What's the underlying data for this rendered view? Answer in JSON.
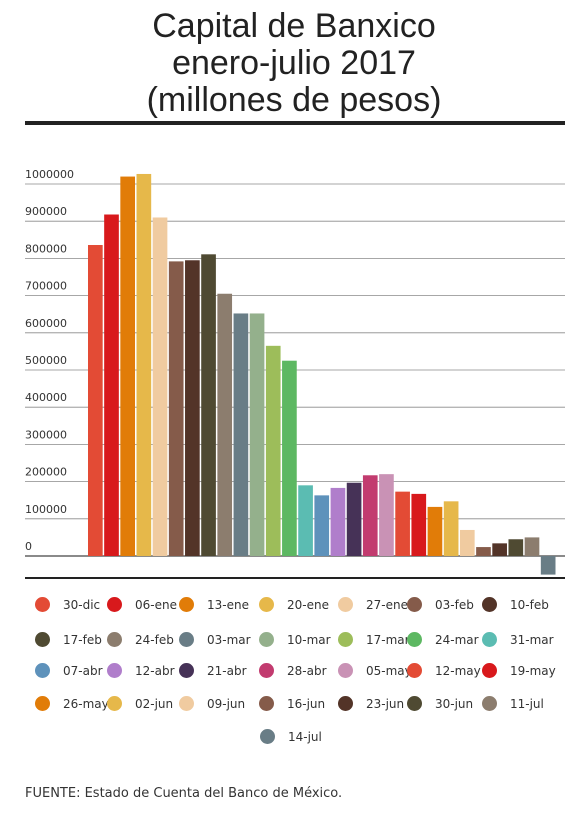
{
  "title_lines": [
    "Capital de Banxico",
    "enero-julio 2017",
    "(millones de pesos)"
  ],
  "source": "FUENTE: Estado de Cuenta del Banco de México.",
  "chart_data": {
    "type": "bar",
    "title": "Capital de Banxico enero-julio 2017 (millones de pesos)",
    "xlabel": "",
    "ylabel": "",
    "ylim": [
      -50000,
      1000000
    ],
    "yticks": [
      0,
      100000,
      200000,
      300000,
      400000,
      500000,
      600000,
      700000,
      800000,
      900000,
      1000000
    ],
    "grid": true,
    "legend_position": "bottom",
    "categories": [
      "30-dic",
      "06-ene",
      "13-ene",
      "20-ene",
      "27-ene",
      "03-feb",
      "10-feb",
      "17-feb",
      "24-feb",
      "03-mar",
      "10-mar",
      "17-mar",
      "24-mar",
      "31-mar",
      "07-abr",
      "12-abr",
      "21-abr",
      "28-abr",
      "05-may",
      "12-may",
      "19-may",
      "26-may",
      "02-jun",
      "09-jun",
      "16-jun",
      "23-jun",
      "30-jun",
      "11-jul",
      "14-jul"
    ],
    "values": [
      836000,
      918000,
      1020000,
      1027000,
      910000,
      792000,
      795000,
      811000,
      705000,
      652000,
      652000,
      565000,
      525000,
      190000,
      163000,
      183000,
      197000,
      217000,
      220000,
      173000,
      167000,
      132000,
      147000,
      70000,
      24000,
      34000,
      45000,
      50000,
      -50000
    ],
    "colors": [
      "#e34b35",
      "#d8191c",
      "#e17c08",
      "#e6b84a",
      "#f0cba0",
      "#855b4a",
      "#533428",
      "#4f4a32",
      "#8c7d6e",
      "#697d86",
      "#94b08c",
      "#9dbd5a",
      "#5db862",
      "#5bbcb2",
      "#5e92bb",
      "#b07ecb",
      "#463257",
      "#c23b6f",
      "#c992b5",
      "#e34b35",
      "#d8191c",
      "#e17c08",
      "#e6b84a",
      "#f0cba0",
      "#855b4a",
      "#533428",
      "#4f4a32",
      "#8c7d6e",
      "#697d86"
    ]
  }
}
